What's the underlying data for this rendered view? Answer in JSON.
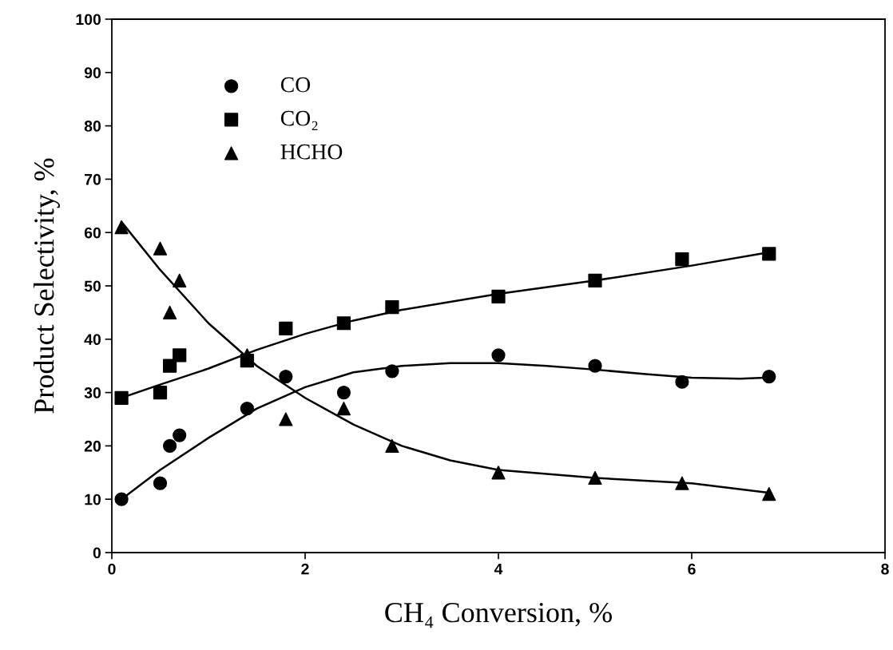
{
  "chart_data": {
    "type": "scatter",
    "xlabel": "CH₄ Conversion, %",
    "ylabel": "Product Selectivity, %",
    "xlim": [
      0,
      8
    ],
    "xticks": [
      0,
      2,
      4,
      6,
      8
    ],
    "ylim": [
      0,
      100
    ],
    "yticks": [
      0,
      10,
      20,
      30,
      40,
      50,
      60,
      70,
      80,
      90,
      100
    ],
    "grid": false,
    "legend": "top left",
    "series": [
      {
        "name": "CO",
        "marker": "circle",
        "color": "#000000",
        "x": [
          0.1,
          0.5,
          0.6,
          0.7,
          1.4,
          1.8,
          2.4,
          2.9,
          4,
          5,
          5.9,
          6.8
        ],
        "values": [
          10,
          13,
          20,
          22,
          27,
          33,
          30,
          34,
          37,
          35,
          32,
          33
        ]
      },
      {
        "name": "CO₂",
        "marker": "square",
        "color": "#000000",
        "x": [
          0.1,
          0.5,
          0.6,
          0.7,
          1.4,
          1.8,
          2.4,
          2.9,
          4,
          5,
          5.9,
          6.8
        ],
        "values": [
          29,
          30,
          35,
          37,
          36,
          42,
          43,
          46,
          48,
          51,
          55,
          56
        ]
      },
      {
        "name": "HCHO",
        "marker": "triangle",
        "color": "#000000",
        "x": [
          0.1,
          0.5,
          0.6,
          0.7,
          1.4,
          1.8,
          2.4,
          2.9,
          4,
          5,
          5.9,
          6.8
        ],
        "values": [
          61,
          57,
          45,
          51,
          37,
          25,
          27,
          20,
          15,
          14,
          13,
          11
        ]
      },
      {
        "type": "line",
        "line_style": "solid",
        "color": "#000000",
        "x": [
          0.1,
          0.5,
          1,
          1.5,
          2,
          2.5,
          3,
          3.5,
          4,
          4.5,
          5,
          5.5,
          6,
          6.5,
          6.8
        ],
        "values": [
          10,
          15.5,
          21.5,
          27,
          31,
          33.8,
          35,
          35.5,
          35.5,
          35,
          34.3,
          33.5,
          32.8,
          32.6,
          32.8
        ]
      },
      {
        "type": "line",
        "line_style": "solid",
        "color": "#000000",
        "x": [
          0.1,
          0.5,
          1,
          1.5,
          2,
          2.5,
          3,
          4,
          5,
          6,
          6.8
        ],
        "values": [
          29,
          31.5,
          34.5,
          38,
          41,
          43.5,
          45.5,
          48.5,
          51,
          53.8,
          56.3
        ]
      },
      {
        "type": "line",
        "line_style": "solid",
        "color": "#000000",
        "x": [
          0.1,
          0.5,
          1,
          1.5,
          2,
          2.5,
          3,
          3.5,
          4,
          5,
          6,
          6.8
        ],
        "values": [
          62,
          53,
          43,
          35,
          29,
          24,
          20,
          17.3,
          15.5,
          14,
          13,
          11.2
        ]
      }
    ]
  }
}
